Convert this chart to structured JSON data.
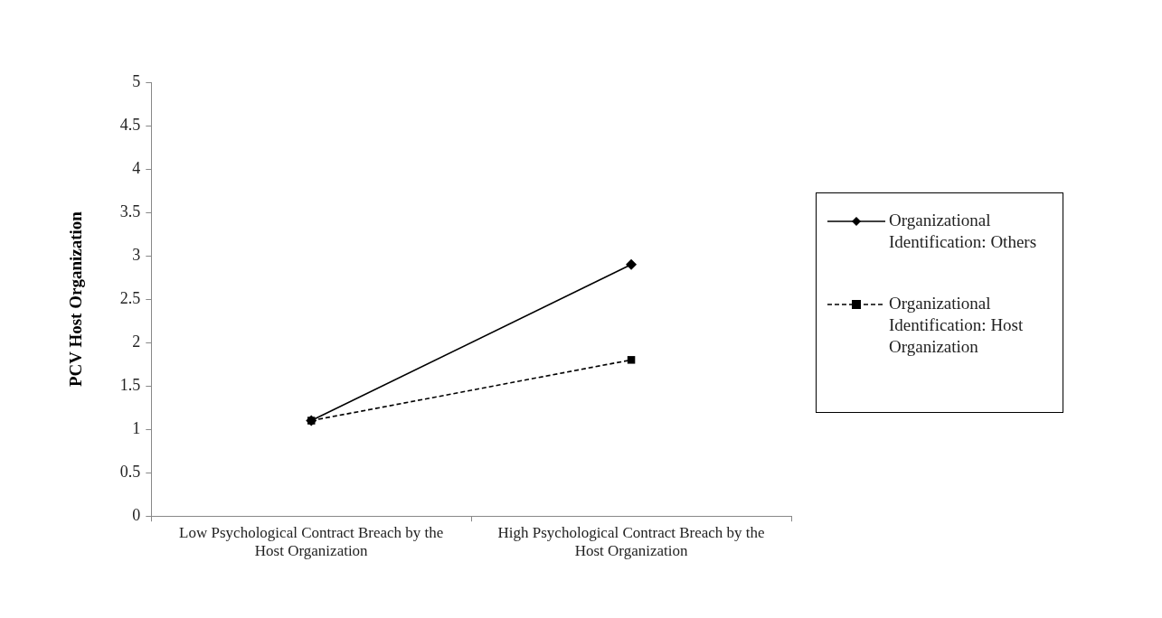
{
  "chart_data": {
    "type": "line",
    "ylabel": "PCV Host Organization",
    "categories": [
      "Low Psychological Contract Breach by the Host Organization",
      "High Psychological Contract Breach by the Host Organization"
    ],
    "series": [
      {
        "name": "Organizational Identification: Others",
        "color": "#000000",
        "values": [
          1.1,
          2.9
        ],
        "marker": "diamond",
        "line_style": "solid"
      },
      {
        "name": "Organizational Identification: Host Organization",
        "color": "#000000",
        "values": [
          1.1,
          1.8
        ],
        "marker": "square",
        "line_style": "dashed"
      }
    ],
    "ylim": [
      0,
      5
    ],
    "yticks": [
      0,
      0.5,
      1,
      1.5,
      2,
      2.5,
      3,
      3.5,
      4,
      4.5,
      5
    ],
    "grid": false,
    "legend": "right"
  }
}
